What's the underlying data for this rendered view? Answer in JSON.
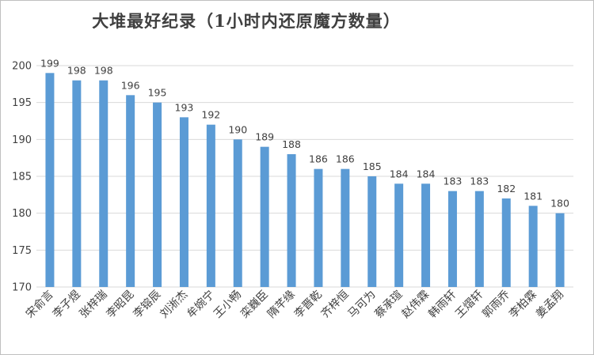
{
  "chart_data": {
    "type": "bar",
    "title": "大堆最好纪录（1小时内还原魔方数量）",
    "xlabel": "",
    "ylabel": "",
    "ylim": [
      170,
      200
    ],
    "yticks": [
      170,
      175,
      180,
      185,
      190,
      195,
      200
    ],
    "grid": true,
    "legend": "none",
    "bar_color": "#5b9bd5",
    "categories": [
      "宋俞言",
      "李子煜",
      "张梓瑞",
      "李昭昆",
      "李镕辰",
      "刘淅杰",
      "牟婉宁",
      "王小畅",
      "栾巍臣",
      "隋芊缘",
      "李晋乾",
      "齐梓恒",
      "马可为",
      "蔡承瑄",
      "赵伟霖",
      "韩雨轩",
      "王熠轩",
      "郭雨乔",
      "李柏霖",
      "姜孟翔"
    ],
    "values": [
      199,
      198,
      198,
      196,
      195,
      193,
      192,
      190,
      189,
      188,
      186,
      186,
      185,
      184,
      184,
      183,
      183,
      182,
      181,
      180
    ]
  }
}
